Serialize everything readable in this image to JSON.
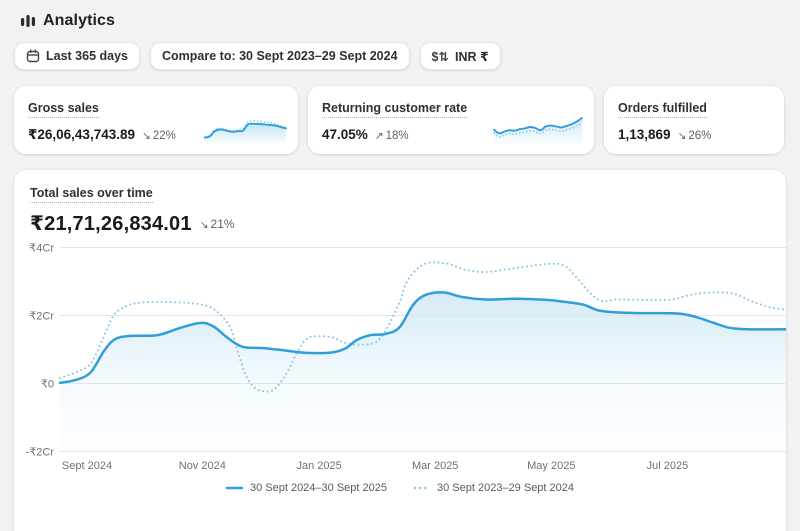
{
  "header": {
    "title": "Analytics"
  },
  "toolbar": {
    "date_range_label": "Last 365 days",
    "compare_label": "Compare to: 30 Sept 2023–29 Sept 2024",
    "currency_icon_text": "$⇅",
    "currency_label": "INR ₹"
  },
  "metric_cards": [
    {
      "title": "Gross sales",
      "value": "₹26,06,43,743.89",
      "trend": "down",
      "trend_arrow": "↘",
      "change": "22%",
      "sparkline": {
        "solid": [
          0.15,
          0.2,
          0.42,
          0.5,
          0.48,
          0.42,
          0.4,
          0.43,
          0.45,
          0.72,
          0.75,
          0.74,
          0.73,
          0.71,
          0.69,
          0.66,
          0.6,
          0.55
        ],
        "dotted": [
          0.18,
          0.25,
          0.48,
          0.55,
          0.53,
          0.47,
          0.45,
          0.5,
          0.55,
          0.82,
          0.88,
          0.86,
          0.84,
          0.82,
          0.78,
          0.72,
          0.65,
          0.57
        ]
      }
    },
    {
      "title": "Returning customer rate",
      "value": "47.05%",
      "trend": "up",
      "trend_arrow": "↗",
      "change": "18%",
      "sparkline": {
        "solid": [
          0.42,
          0.28,
          0.35,
          0.4,
          0.38,
          0.44,
          0.47,
          0.52,
          0.48,
          0.4,
          0.54,
          0.57,
          0.54,
          0.5,
          0.56,
          0.62,
          0.72,
          0.85
        ],
        "dotted": [
          0.3,
          0.15,
          0.22,
          0.27,
          0.25,
          0.3,
          0.33,
          0.38,
          0.34,
          0.27,
          0.4,
          0.43,
          0.4,
          0.36,
          0.42,
          0.47,
          0.57,
          0.65
        ]
      }
    },
    {
      "title": "Orders fulfilled",
      "value": "1,13,869",
      "trend": "down",
      "trend_arrow": "↘",
      "change": "26%",
      "sparkline": null
    }
  ],
  "main_chart": {
    "title": "Total sales over time",
    "value": "₹21,71,26,834.01",
    "trend_arrow": "↘",
    "change": "21%"
  },
  "chart_data": {
    "type": "line",
    "title": "Total sales over time",
    "x_unit": "months since 30 Sept 2024",
    "x_range": [
      0,
      12
    ],
    "y_unit": "₹ crore",
    "ylim": [
      -2.7,
      4.4
    ],
    "grid": true,
    "legend_position": "bottom",
    "y_ticks": [
      {
        "label": "₹4Cr",
        "value": 4
      },
      {
        "label": "₹2Cr",
        "value": 2
      },
      {
        "label": "₹0",
        "value": 0
      },
      {
        "label": "-₹2Cr",
        "value": -2
      }
    ],
    "x_ticks": [
      {
        "label": "Sept 2024",
        "f": 0.037
      },
      {
        "label": "Nov 2024",
        "f": 0.195
      },
      {
        "label": "Jan 2025",
        "f": 0.355
      },
      {
        "label": "Mar 2025",
        "f": 0.514
      },
      {
        "label": "May 2025",
        "f": 0.673
      },
      {
        "label": "Jul 2025",
        "f": 0.832
      }
    ],
    "series": [
      {
        "name": "30 Sept 2024–30 Sept 2025",
        "style": "solid",
        "points": [
          [
            0,
            0.02
          ],
          [
            0.25,
            0.1
          ],
          [
            0.5,
            0.32
          ],
          [
            0.72,
            0.95
          ],
          [
            0.9,
            1.3
          ],
          [
            1.15,
            1.4
          ],
          [
            1.6,
            1.42
          ],
          [
            1.95,
            1.62
          ],
          [
            2.3,
            1.78
          ],
          [
            2.52,
            1.68
          ],
          [
            2.75,
            1.35
          ],
          [
            3.0,
            1.08
          ],
          [
            3.35,
            1.04
          ],
          [
            3.7,
            0.97
          ],
          [
            4.05,
            0.9
          ],
          [
            4.45,
            0.91
          ],
          [
            4.68,
            1.02
          ],
          [
            4.88,
            1.28
          ],
          [
            5.1,
            1.42
          ],
          [
            5.35,
            1.46
          ],
          [
            5.58,
            1.65
          ],
          [
            5.8,
            2.3
          ],
          [
            6.0,
            2.6
          ],
          [
            6.3,
            2.68
          ],
          [
            6.6,
            2.55
          ],
          [
            7.0,
            2.47
          ],
          [
            7.45,
            2.49
          ],
          [
            8.0,
            2.46
          ],
          [
            8.3,
            2.4
          ],
          [
            8.6,
            2.32
          ],
          [
            8.85,
            2.15
          ],
          [
            9.15,
            2.09
          ],
          [
            9.65,
            2.07
          ],
          [
            10.15,
            2.06
          ],
          [
            10.45,
            1.96
          ],
          [
            10.75,
            1.78
          ],
          [
            11.0,
            1.64
          ],
          [
            11.25,
            1.6
          ],
          [
            11.6,
            1.59
          ],
          [
            12,
            1.6
          ]
        ]
      },
      {
        "name": "30 Sept 2023–29 Sept 2024",
        "style": "dotted",
        "points": [
          [
            0,
            0.16
          ],
          [
            0.3,
            0.36
          ],
          [
            0.52,
            0.62
          ],
          [
            0.75,
            1.5
          ],
          [
            0.9,
            2.05
          ],
          [
            1.12,
            2.3
          ],
          [
            1.35,
            2.38
          ],
          [
            1.65,
            2.4
          ],
          [
            2.1,
            2.37
          ],
          [
            2.42,
            2.28
          ],
          [
            2.62,
            2.05
          ],
          [
            2.8,
            1.65
          ],
          [
            2.92,
            0.95
          ],
          [
            3.06,
            0.22
          ],
          [
            3.2,
            -0.12
          ],
          [
            3.35,
            -0.23
          ],
          [
            3.5,
            -0.2
          ],
          [
            3.62,
            0.02
          ],
          [
            3.76,
            0.42
          ],
          [
            3.93,
            1.02
          ],
          [
            4.05,
            1.3
          ],
          [
            4.15,
            1.38
          ],
          [
            4.45,
            1.37
          ],
          [
            4.68,
            1.2
          ],
          [
            4.95,
            1.14
          ],
          [
            5.25,
            1.3
          ],
          [
            5.55,
            2.25
          ],
          [
            5.72,
            3.05
          ],
          [
            6.0,
            3.52
          ],
          [
            6.35,
            3.53
          ],
          [
            6.65,
            3.35
          ],
          [
            7.0,
            3.28
          ],
          [
            7.5,
            3.4
          ],
          [
            8.05,
            3.52
          ],
          [
            8.3,
            3.45
          ],
          [
            8.5,
            3.1
          ],
          [
            8.72,
            2.65
          ],
          [
            8.92,
            2.42
          ],
          [
            9.15,
            2.47
          ],
          [
            9.65,
            2.46
          ],
          [
            10.05,
            2.47
          ],
          [
            10.35,
            2.6
          ],
          [
            10.65,
            2.67
          ],
          [
            11.05,
            2.65
          ],
          [
            11.4,
            2.4
          ],
          [
            11.72,
            2.22
          ],
          [
            12,
            2.17
          ]
        ]
      }
    ]
  },
  "colors": {
    "accent_blue": "#2f9ed9",
    "compare_blue": "#8cc6e6",
    "grid": "#e4e4e4",
    "axis_text": "#6b7177",
    "trend_text": "#616161",
    "page_bg": "#f2f2f2"
  }
}
